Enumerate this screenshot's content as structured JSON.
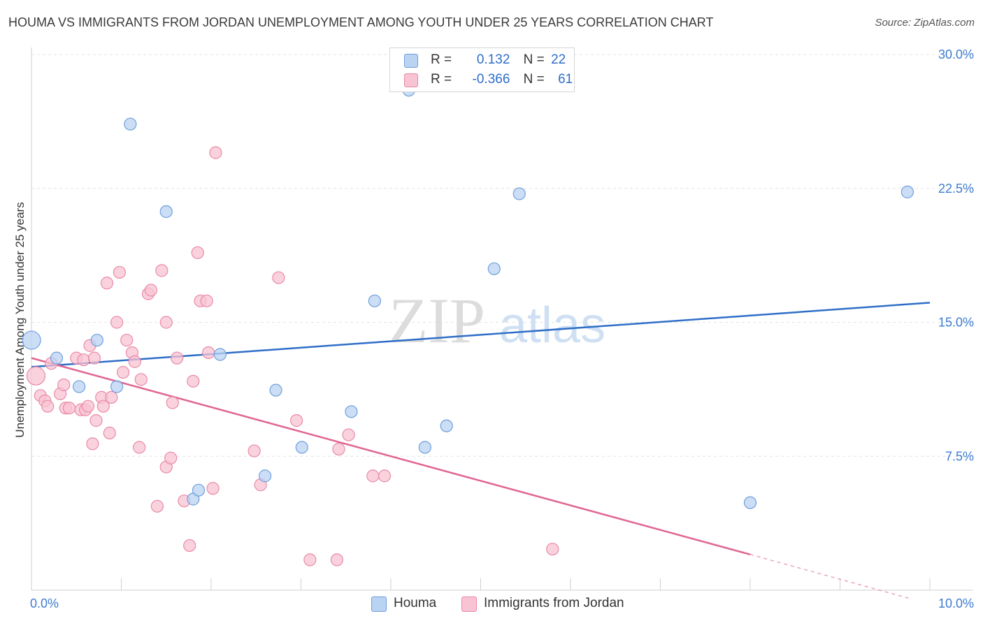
{
  "title": "HOUMA VS IMMIGRANTS FROM JORDAN UNEMPLOYMENT AMONG YOUTH UNDER 25 YEARS CORRELATION CHART",
  "source": "Source: ZipAtlas.com",
  "watermark": {
    "zip": "ZIP",
    "atlas": "atlas"
  },
  "legend": {
    "r_label": "R =",
    "n_label": "N =",
    "houma": {
      "r": "0.132",
      "n": "22"
    },
    "jordan": {
      "r": "-0.366",
      "n": "61"
    }
  },
  "bottom_legend": {
    "houma": "Houma",
    "jordan": "Immigrants from Jordan"
  },
  "colors": {
    "houma_fill": "#b9d3f2",
    "houma_stroke": "#6f9fdc",
    "houma_line": "#2f6ec8",
    "jordan_fill": "#f8c3d3",
    "jordan_stroke": "#e88aa7",
    "jordan_line": "#e06694",
    "axis_text": "#3d7bd1",
    "grid": "#e3e3e3"
  },
  "chart_data": {
    "type": "scatter",
    "title": "HOUMA VS IMMIGRANTS FROM JORDAN UNEMPLOYMENT AMONG YOUTH UNDER 25 YEARS CORRELATION CHART",
    "xlabel": "",
    "ylabel": "Unemployment Among Youth under 25 years",
    "xlim": [
      0,
      10
    ],
    "ylim": [
      0,
      30
    ],
    "x_ticks": [
      0,
      1,
      2,
      3,
      4,
      5,
      6,
      7,
      8,
      9,
      10
    ],
    "x_tick_labels": {
      "left": "0.0%",
      "right": "10.0%"
    },
    "y_ticks": [
      7.5,
      15.0,
      22.5,
      30.0
    ],
    "y_tick_labels": [
      "7.5%",
      "15.0%",
      "22.5%",
      "30.0%"
    ],
    "series": [
      {
        "name": "Houma",
        "r": 0.132,
        "n": 22,
        "trend": {
          "x0": 0,
          "y0": 12.5,
          "x1": 10,
          "y1": 16.1
        },
        "points": [
          {
            "x": 0.0,
            "y": 14.0,
            "big": true
          },
          {
            "x": 0.28,
            "y": 13.0
          },
          {
            "x": 0.53,
            "y": 11.4
          },
          {
            "x": 0.73,
            "y": 14.0
          },
          {
            "x": 0.95,
            "y": 11.4
          },
          {
            "x": 1.1,
            "y": 26.1
          },
          {
            "x": 1.5,
            "y": 21.2
          },
          {
            "x": 1.8,
            "y": 5.1
          },
          {
            "x": 1.86,
            "y": 5.6
          },
          {
            "x": 2.1,
            "y": 13.2
          },
          {
            "x": 2.6,
            "y": 6.4
          },
          {
            "x": 2.72,
            "y": 11.2
          },
          {
            "x": 3.01,
            "y": 8.0
          },
          {
            "x": 3.56,
            "y": 10.0
          },
          {
            "x": 3.82,
            "y": 16.2
          },
          {
            "x": 4.2,
            "y": 28.0
          },
          {
            "x": 4.38,
            "y": 8.0
          },
          {
            "x": 4.62,
            "y": 9.2
          },
          {
            "x": 5.15,
            "y": 18.0
          },
          {
            "x": 5.43,
            "y": 22.2
          },
          {
            "x": 8.0,
            "y": 4.9
          },
          {
            "x": 9.75,
            "y": 22.3
          }
        ]
      },
      {
        "name": "Immigrants from Jordan",
        "r": -0.366,
        "n": 61,
        "trend": {
          "x0": 0,
          "y0": 13.0,
          "x1": 8.0,
          "y1": 2.0
        },
        "trend_dashed": {
          "x0": 8.0,
          "y0": 2.0,
          "x1": 9.8,
          "y1": -0.5
        },
        "points": [
          {
            "x": 0.05,
            "y": 12.0,
            "big": true
          },
          {
            "x": 0.1,
            "y": 10.9
          },
          {
            "x": 0.15,
            "y": 10.6
          },
          {
            "x": 0.18,
            "y": 10.3
          },
          {
            "x": 0.22,
            "y": 12.7
          },
          {
            "x": 0.32,
            "y": 11.0
          },
          {
            "x": 0.38,
            "y": 10.2
          },
          {
            "x": 0.36,
            "y": 11.5
          },
          {
            "x": 0.42,
            "y": 10.2
          },
          {
            "x": 0.5,
            "y": 13.0
          },
          {
            "x": 0.55,
            "y": 10.1
          },
          {
            "x": 0.58,
            "y": 12.9
          },
          {
            "x": 0.6,
            "y": 10.1
          },
          {
            "x": 0.63,
            "y": 10.3
          },
          {
            "x": 0.65,
            "y": 13.7
          },
          {
            "x": 0.7,
            "y": 13.0
          },
          {
            "x": 0.68,
            "y": 8.2
          },
          {
            "x": 0.72,
            "y": 9.5
          },
          {
            "x": 0.78,
            "y": 10.8
          },
          {
            "x": 0.8,
            "y": 10.3
          },
          {
            "x": 0.84,
            "y": 17.2
          },
          {
            "x": 0.87,
            "y": 8.8
          },
          {
            "x": 0.89,
            "y": 10.8
          },
          {
            "x": 0.95,
            "y": 15.0
          },
          {
            "x": 0.98,
            "y": 17.8
          },
          {
            "x": 1.02,
            "y": 12.2
          },
          {
            "x": 1.06,
            "y": 14.0
          },
          {
            "x": 1.12,
            "y": 13.3
          },
          {
            "x": 1.15,
            "y": 12.8
          },
          {
            "x": 1.2,
            "y": 8.0
          },
          {
            "x": 1.22,
            "y": 11.8
          },
          {
            "x": 1.3,
            "y": 16.6
          },
          {
            "x": 1.33,
            "y": 16.8
          },
          {
            "x": 1.4,
            "y": 4.7
          },
          {
            "x": 1.45,
            "y": 17.9
          },
          {
            "x": 1.5,
            "y": 15.0
          },
          {
            "x": 1.5,
            "y": 6.9
          },
          {
            "x": 1.55,
            "y": 7.4
          },
          {
            "x": 1.57,
            "y": 10.5
          },
          {
            "x": 1.62,
            "y": 13.0
          },
          {
            "x": 1.7,
            "y": 5.0
          },
          {
            "x": 1.76,
            "y": 2.5
          },
          {
            "x": 1.8,
            "y": 11.7
          },
          {
            "x": 1.85,
            "y": 18.9
          },
          {
            "x": 1.88,
            "y": 16.2
          },
          {
            "x": 1.95,
            "y": 16.2
          },
          {
            "x": 1.97,
            "y": 13.3
          },
          {
            "x": 2.02,
            "y": 5.7
          },
          {
            "x": 2.05,
            "y": 24.5
          },
          {
            "x": 2.48,
            "y": 7.8
          },
          {
            "x": 2.55,
            "y": 5.9
          },
          {
            "x": 2.75,
            "y": 17.5
          },
          {
            "x": 2.95,
            "y": 9.5
          },
          {
            "x": 3.1,
            "y": 1.7
          },
          {
            "x": 3.4,
            "y": 1.7
          },
          {
            "x": 3.42,
            "y": 7.9
          },
          {
            "x": 3.53,
            "y": 8.7
          },
          {
            "x": 3.8,
            "y": 6.4
          },
          {
            "x": 3.93,
            "y": 6.4
          },
          {
            "x": 5.8,
            "y": 2.3
          },
          {
            "x": 1.5,
            "y": 19.5,
            "hidden": true
          }
        ]
      }
    ]
  }
}
